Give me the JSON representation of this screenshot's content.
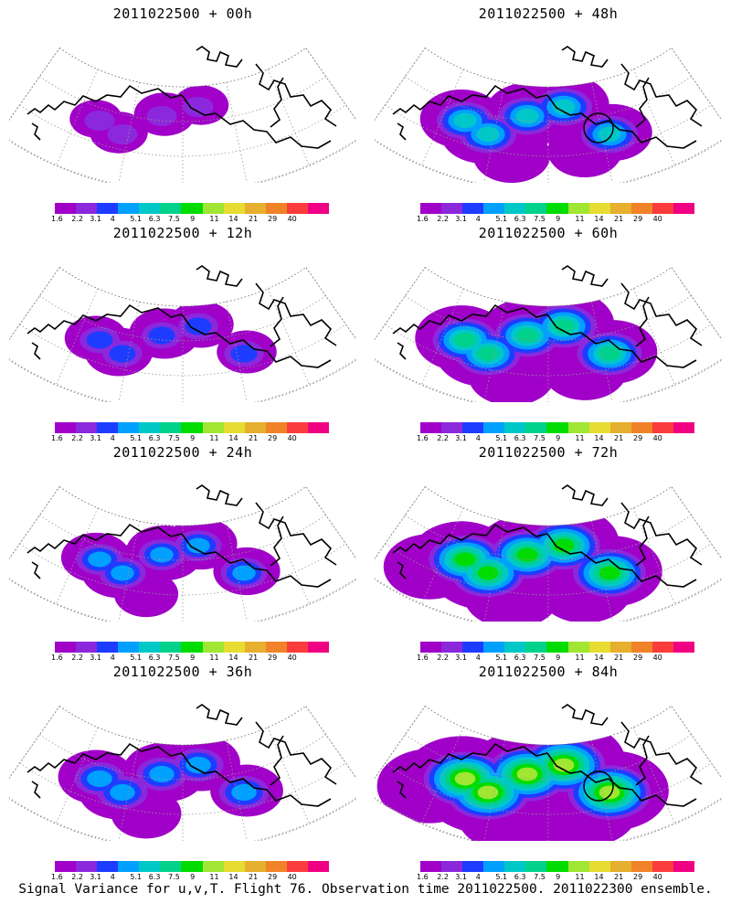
{
  "caption": "Signal Variance for u,v,T. Flight 76. Observation time 2011022500. 2011022300 ensemble.",
  "colorbar": {
    "ticks": [
      "1.6",
      "2.2",
      "3.1",
      "4",
      "5.1",
      "6.3",
      "7.5",
      "9",
      "11",
      "14",
      "21",
      "29",
      "40"
    ],
    "colors": [
      "#a000c8",
      "#8c28dc",
      "#1e3cff",
      "#00a0ff",
      "#00c8c8",
      "#00d28c",
      "#00dc00",
      "#a0e632",
      "#e6dc32",
      "#e6af2d",
      "#f08228",
      "#fa3c3c",
      "#f00082"
    ]
  },
  "panels": [
    {
      "title": "2011022500 + 00h",
      "level": 0.15,
      "circle": false
    },
    {
      "title": "2011022500 + 48h",
      "level": 0.45,
      "circle": true
    },
    {
      "title": "2011022500 + 12h",
      "level": 0.25,
      "circle": false
    },
    {
      "title": "2011022500 + 60h",
      "level": 0.55,
      "circle": false
    },
    {
      "title": "2011022500 + 24h",
      "level": 0.32,
      "circle": false
    },
    {
      "title": "2011022500 + 72h",
      "level": 0.65,
      "circle": false
    },
    {
      "title": "2011022500 + 36h",
      "level": 0.38,
      "circle": false
    },
    {
      "title": "2011022500 + 84h",
      "level": 0.78,
      "circle": true
    }
  ]
}
